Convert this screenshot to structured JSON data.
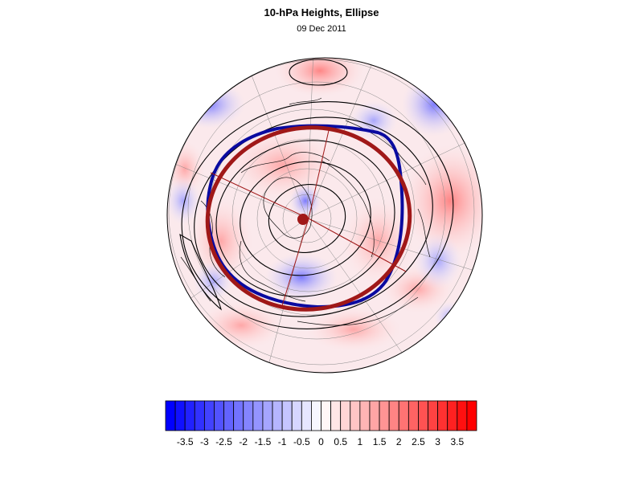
{
  "figure": {
    "title": "10-hPa Heights, Ellipse",
    "date": "09 Dec 2011"
  },
  "colorbar": {
    "ticks": [
      "-3.5",
      "-3",
      "-2.5",
      "-2",
      "-1.5",
      "-1",
      "-0.5",
      "0",
      "0.5",
      "1",
      "1.5",
      "2",
      "2.5",
      "3",
      "3.5"
    ],
    "min": -4,
    "max": 4,
    "step": 0.25,
    "colors": {
      "negative": "#0000ff",
      "neutral": "#ffffff",
      "positive": "#ff0000"
    }
  },
  "map": {
    "projection": "north-polar-orthographic",
    "ellipse_color": "#a01818",
    "vortex_edge_color": "#0a0aa0",
    "contour_color": "#000000"
  }
}
